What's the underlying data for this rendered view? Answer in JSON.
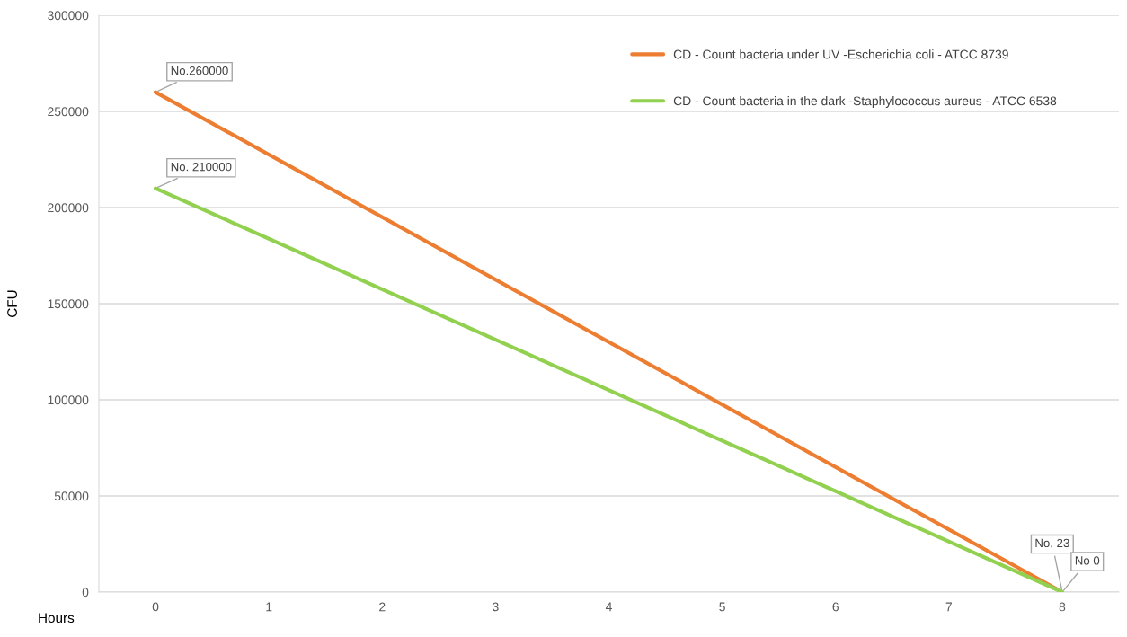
{
  "chart_data": {
    "type": "line",
    "xlabel": "Hours",
    "ylabel": "CFU",
    "categories": [
      "0",
      "1",
      "2",
      "3",
      "4",
      "5",
      "6",
      "7",
      "8"
    ],
    "ylim": [
      0,
      300000
    ],
    "yticks": [
      0,
      50000,
      100000,
      150000,
      200000,
      250000,
      300000
    ],
    "grid": "y",
    "legend": "top right",
    "marker": "none",
    "line_style": "solid",
    "series": [
      {
        "name": "CD - Count bacteria under UV -Escherichia coli - ATCC 8739",
        "color": "#ed7d31",
        "values": [
          260000,
          null,
          null,
          null,
          null,
          null,
          null,
          null,
          23
        ]
      },
      {
        "name": "CD - Count bacteria in the dark -Staphylococcus aureus - ATCC 6538",
        "color": "#92d050",
        "values": [
          210000,
          null,
          null,
          null,
          null,
          null,
          null,
          null,
          0
        ]
      }
    ],
    "annotations": [
      {
        "text": "No.260000",
        "x": "0",
        "y": 260000
      },
      {
        "text": "No. 210000",
        "x": "0",
        "y": 210000
      },
      {
        "text": "No. 23",
        "x": "8",
        "y": 23
      },
      {
        "text": "No 0",
        "x": "8",
        "y": 0
      }
    ]
  }
}
